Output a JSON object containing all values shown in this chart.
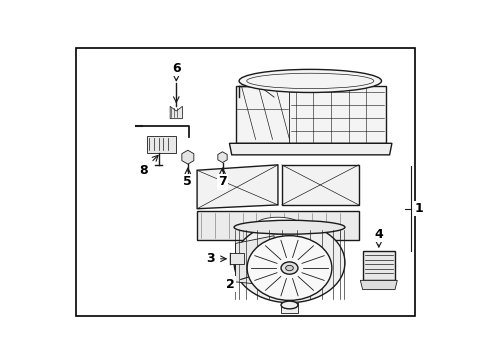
{
  "bg_color": "#ffffff",
  "line_color": "#1a1a1a",
  "label_color": "#000000",
  "border_color": "#000000",
  "fig_width": 4.89,
  "fig_height": 3.6,
  "dpi": 100
}
